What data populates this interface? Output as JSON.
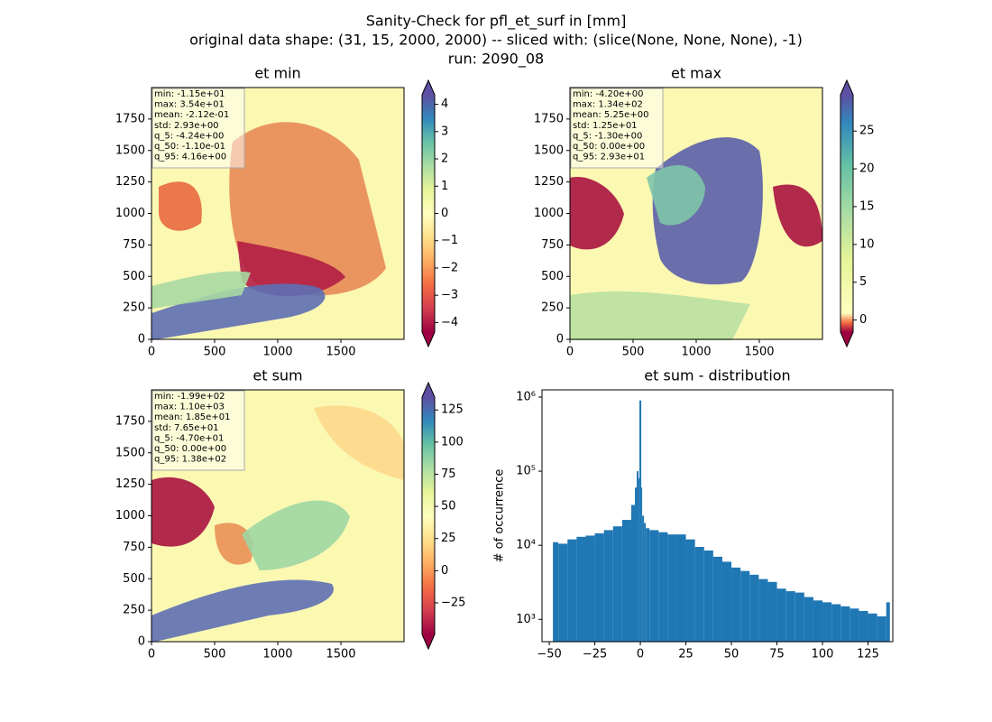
{
  "suptitle": [
    "Sanity-Check for pfl_et_surf in [mm]",
    "original data shape: (31, 15, 2000, 2000) -- sliced with: (slice(None, None, None), -1)",
    "run: 2090_08"
  ],
  "chart_data": [
    {
      "type": "heatmap",
      "title": "et min",
      "xlim": [
        0,
        2000
      ],
      "ylim": [
        0,
        2000
      ],
      "xticks": [
        0,
        500,
        1000,
        1500
      ],
      "yticks": [
        0,
        250,
        500,
        750,
        1000,
        1250,
        1500,
        1750
      ],
      "stats": [
        "min: -1.15e+01",
        "max: 3.54e+01",
        "mean: -2.12e-01",
        "std: 2.93e+00",
        "q_5: -4.24e+00",
        "q_50: -1.10e-01",
        "q_95: 4.16e+00"
      ],
      "clim": [
        -4.35,
        4.35
      ],
      "cticks": [
        {
          "value": -4,
          "label": "−4"
        },
        {
          "value": -3,
          "label": "−3"
        },
        {
          "value": -2,
          "label": "−2"
        },
        {
          "value": -1,
          "label": "−1"
        },
        0,
        1,
        2,
        3,
        4
      ]
    },
    {
      "type": "heatmap",
      "title": "et max",
      "xlim": [
        0,
        2000
      ],
      "ylim": [
        0,
        2000
      ],
      "xticks": [
        0,
        500,
        1000,
        1500
      ],
      "yticks": [
        0,
        250,
        500,
        750,
        1000,
        1250,
        1500,
        1750
      ],
      "stats": [
        "min: -4.20e+00",
        "max: 1.34e+02",
        "mean: 5.25e+00",
        "std: 1.25e+01",
        "q_5: -1.30e+00",
        "q_50: 0.00e+00",
        "q_95: 2.93e+01"
      ],
      "clim": [
        -1.6,
        29.8
      ],
      "cticks": [
        0,
        5,
        10,
        15,
        20,
        25
      ]
    },
    {
      "type": "heatmap",
      "title": "et sum",
      "xlim": [
        0,
        2000
      ],
      "ylim": [
        0,
        2000
      ],
      "xticks": [
        0,
        500,
        1000,
        1500
      ],
      "yticks": [
        0,
        250,
        500,
        750,
        1000,
        1250,
        1500,
        1750
      ],
      "stats": [
        "min: -1.99e+02",
        "max: 1.10e+03",
        "mean: 1.85e+01",
        "std: 7.65e+01",
        "q_5: -4.70e+01",
        "q_50: 0.00e+00",
        "q_95: 1.38e+02"
      ],
      "clim": [
        -49.6,
        135
      ],
      "cticks": [
        {
          "value": -25,
          "label": "−25"
        },
        0,
        25,
        50,
        75,
        100,
        125
      ]
    },
    {
      "type": "histogram",
      "title": "et sum - distribution",
      "ylabel": "# of occurrence",
      "color": "#1f77b4",
      "log_y": true,
      "bins": [
        -48,
        -45,
        -40,
        -35,
        -30,
        -25,
        -20,
        -15,
        -10,
        -5,
        -3,
        -2,
        -1,
        -0.5,
        0.5,
        1,
        2,
        3,
        5,
        10,
        15,
        20,
        25,
        30,
        35,
        40,
        45,
        50,
        55,
        60,
        65,
        70,
        75,
        80,
        85,
        90,
        95,
        100,
        105,
        110,
        115,
        120,
        125,
        130,
        135,
        137
      ],
      "values": [
        11000,
        10500,
        12000,
        13000,
        13500,
        14500,
        16000,
        18000,
        22000,
        35000,
        60000,
        100000,
        80000,
        900000,
        60000,
        25000,
        20000,
        17000,
        16000,
        15000,
        14000,
        14000,
        12000,
        9500,
        8500,
        7000,
        6000,
        5000,
        4500,
        4000,
        3500,
        3200,
        2600,
        2400,
        2300,
        2000,
        1800,
        1700,
        1600,
        1500,
        1400,
        1300,
        1200,
        1100,
        1700
      ],
      "xlim": [
        -54,
        138.6
      ],
      "ylim": [
        500,
        1250000
      ],
      "xticks": [
        {
          "value": -50,
          "label": "−50"
        },
        {
          "value": -25,
          "label": "−25"
        },
        0,
        25,
        50,
        75,
        100,
        125
      ],
      "yticks": [
        {
          "value": 1000,
          "label": "10³"
        },
        {
          "value": 10000,
          "label": "10⁴"
        },
        {
          "value": 100000,
          "label": "10⁵"
        },
        {
          "value": 1000000,
          "label": "10⁶"
        }
      ]
    }
  ]
}
